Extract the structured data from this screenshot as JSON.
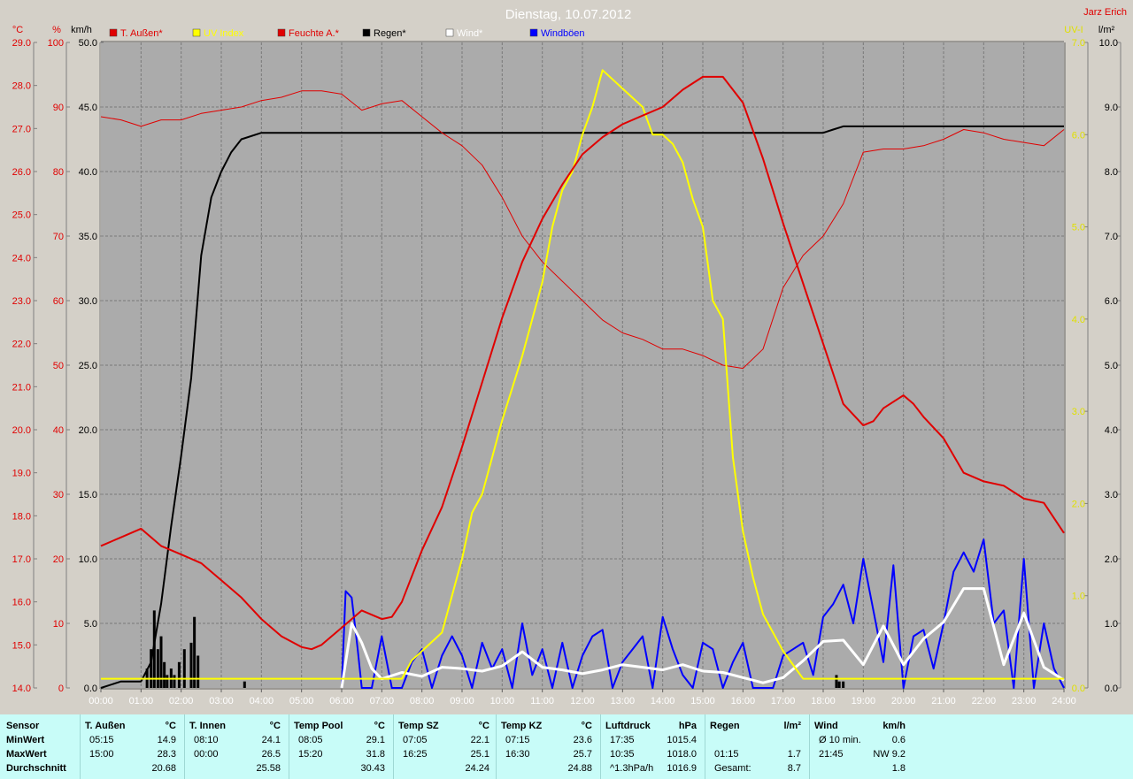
{
  "header": {
    "title": "Dienstag, 10.07.2012",
    "author": "Jarz Erich"
  },
  "legend": [
    {
      "label": "T. Außen*",
      "color": "#e00000"
    },
    {
      "label": "UV Index",
      "color": "#ffff00"
    },
    {
      "label": "Feuchte A.*",
      "color": "#e00000"
    },
    {
      "label": "Regen*",
      "color": "#000000"
    },
    {
      "label": "Wind*",
      "color": "#ffffff"
    },
    {
      "label": "Windböen",
      "color": "#0000ff"
    }
  ],
  "axis_units": {
    "temp": "°C",
    "humidity": "%",
    "wind": "km/h",
    "uv": "UV-I",
    "rain": "l/m²"
  },
  "chart_data": {
    "type": "line",
    "x_ticks": [
      "00:00",
      "01:00",
      "02:00",
      "03:00",
      "04:00",
      "05:00",
      "06:00",
      "07:00",
      "08:00",
      "09:00",
      "10:00",
      "11:00",
      "12:00",
      "13:00",
      "14:00",
      "15:00",
      "16:00",
      "17:00",
      "18:00",
      "19:00",
      "20:00",
      "21:00",
      "22:00",
      "23:00",
      "24:00"
    ],
    "axes": {
      "temp": {
        "range": [
          14,
          29
        ],
        "ticks": [
          "14.0",
          "15.0",
          "16.0",
          "17.0",
          "18.0",
          "19.0",
          "20.0",
          "21.0",
          "22.0",
          "23.0",
          "24.0",
          "25.0",
          "26.0",
          "27.0",
          "28.0",
          "29.0"
        ]
      },
      "humidity": {
        "range": [
          0,
          100
        ],
        "ticks": [
          "0",
          "10",
          "20",
          "30",
          "40",
          "50",
          "60",
          "70",
          "80",
          "90",
          "100"
        ]
      },
      "wind": {
        "range": [
          0,
          50
        ],
        "ticks": [
          "0.0",
          "5.0",
          "10.0",
          "15.0",
          "20.0",
          "25.0",
          "30.0",
          "35.0",
          "40.0",
          "45.0",
          "50.0"
        ]
      },
      "uv": {
        "range": [
          0,
          7
        ],
        "ticks": [
          "0.0",
          "1.0",
          "2.0",
          "3.0",
          "4.0",
          "5.0",
          "6.0",
          "7.0"
        ]
      },
      "rain": {
        "range": [
          0,
          10
        ],
        "ticks": [
          "0.0",
          "1.0",
          "2.0",
          "3.0",
          "4.0",
          "5.0",
          "6.0",
          "7.0",
          "8.0",
          "9.0",
          "10.0"
        ]
      }
    },
    "series": [
      {
        "name": "T. Außen*",
        "axis": "temp",
        "color": "#e00000",
        "width": 2,
        "x": [
          0,
          0.5,
          1.0,
          1.5,
          2.0,
          2.5,
          3.0,
          3.5,
          4.0,
          4.5,
          5.0,
          5.25,
          5.5,
          6.0,
          6.5,
          7.0,
          7.25,
          7.5,
          8.0,
          8.5,
          9.0,
          9.5,
          10.0,
          10.5,
          11.0,
          11.5,
          12.0,
          12.5,
          13.0,
          13.5,
          14.0,
          14.5,
          15.0,
          15.5,
          16.0,
          16.5,
          17.0,
          17.5,
          18.0,
          18.5,
          19.0,
          19.25,
          19.5,
          20.0,
          20.25,
          20.5,
          21.0,
          21.5,
          22.0,
          22.5,
          23.0,
          23.5,
          24.0
        ],
        "y": [
          17.3,
          17.5,
          17.7,
          17.3,
          17.1,
          16.9,
          16.5,
          16.1,
          15.6,
          15.2,
          14.95,
          14.9,
          15.0,
          15.4,
          15.8,
          15.6,
          15.65,
          16.0,
          17.2,
          18.2,
          19.6,
          21.1,
          22.6,
          23.9,
          24.9,
          25.7,
          26.4,
          26.8,
          27.1,
          27.3,
          27.5,
          27.9,
          28.2,
          28.2,
          27.6,
          26.3,
          24.8,
          23.4,
          22.0,
          20.6,
          20.1,
          20.2,
          20.5,
          20.8,
          20.6,
          20.3,
          19.8,
          19.0,
          18.8,
          18.7,
          18.4,
          18.3,
          17.6
        ]
      },
      {
        "name": "Feuchte A.*",
        "axis": "humidity",
        "color": "#e00000",
        "width": 1,
        "x": [
          0,
          0.5,
          1.0,
          1.5,
          2.0,
          2.5,
          3.0,
          3.5,
          4.0,
          4.5,
          5.0,
          5.5,
          6.0,
          6.5,
          7.0,
          7.5,
          8.0,
          8.5,
          9.0,
          9.5,
          10.0,
          10.5,
          11.0,
          11.5,
          12.0,
          12.5,
          13.0,
          13.5,
          14.0,
          14.5,
          15.0,
          15.5,
          16.0,
          16.5,
          17.0,
          17.5,
          18.0,
          18.5,
          19.0,
          19.5,
          20.0,
          20.5,
          21.0,
          21.5,
          22.0,
          22.5,
          23.0,
          23.5,
          24.0
        ],
        "y": [
          88.5,
          88,
          87,
          88,
          88,
          89,
          89.5,
          90,
          91,
          91.5,
          92.5,
          92.5,
          92,
          89.5,
          90.5,
          91,
          88.5,
          86,
          84,
          81,
          76,
          70,
          66,
          63,
          60,
          57,
          55,
          54,
          52.5,
          52.5,
          51.5,
          50,
          49.5,
          52.5,
          62,
          67,
          70,
          75,
          83,
          83.5,
          83.5,
          84,
          85,
          86.5,
          86,
          85,
          84.5,
          84,
          86.5
        ]
      },
      {
        "name": "Regen*",
        "axis": "rain",
        "color": "#000000",
        "width": 2,
        "x": [
          0,
          0.5,
          1.0,
          1.25,
          1.5,
          1.75,
          2.0,
          2.25,
          2.5,
          2.75,
          3.0,
          3.25,
          3.5,
          4.0,
          4.5,
          5.0,
          6.0,
          10.0,
          18.0,
          18.25,
          18.5,
          19.0,
          20.0,
          24.0
        ],
        "y": [
          0,
          0.1,
          0.1,
          0.4,
          1.3,
          2.5,
          3.6,
          4.8,
          6.7,
          7.6,
          8.0,
          8.3,
          8.5,
          8.6,
          8.6,
          8.6,
          8.6,
          8.6,
          8.6,
          8.65,
          8.7,
          8.7,
          8.7,
          8.7
        ]
      },
      {
        "name": "UV Index",
        "axis": "uv",
        "color": "#ffff00",
        "width": 2,
        "x": [
          0,
          6.0,
          7.5,
          7.75,
          8.0,
          8.5,
          9.0,
          9.25,
          9.5,
          10.0,
          10.5,
          11.0,
          11.25,
          11.5,
          11.75,
          12.0,
          12.25,
          12.5,
          12.75,
          13.0,
          13.25,
          13.5,
          13.75,
          14.0,
          14.25,
          14.5,
          14.75,
          15.0,
          15.25,
          15.5,
          15.75,
          16.0,
          16.25,
          16.5,
          17.0,
          17.5,
          18.0,
          20.0,
          24.0
        ],
        "y": [
          0.1,
          0.1,
          0.1,
          0.3,
          0.4,
          0.6,
          1.4,
          1.9,
          2.1,
          2.9,
          3.6,
          4.4,
          5.0,
          5.4,
          5.6,
          6.0,
          6.3,
          6.7,
          6.6,
          6.5,
          6.4,
          6.3,
          6.0,
          6.0,
          5.9,
          5.7,
          5.3,
          5.0,
          4.2,
          4.0,
          2.5,
          1.7,
          1.2,
          0.8,
          0.4,
          0.1,
          0.1,
          0.1,
          0.1
        ]
      },
      {
        "name": "Wind*",
        "axis": "wind",
        "color": "#ffffff",
        "width": 3,
        "x": [
          6.0,
          6.25,
          6.5,
          6.75,
          7.0,
          7.5,
          8.0,
          8.5,
          9.0,
          9.5,
          10.0,
          10.5,
          11.0,
          11.5,
          12.0,
          12.5,
          13.0,
          13.5,
          14.0,
          14.5,
          15.0,
          15.5,
          16.0,
          16.5,
          17.0,
          17.5,
          18.0,
          18.5,
          19.0,
          19.5,
          20.0,
          20.5,
          21.0,
          21.5,
          22.0,
          22.5,
          23.0,
          23.5,
          24.0
        ],
        "y": [
          0,
          5.0,
          3.5,
          1.5,
          0.7,
          1.2,
          0.9,
          1.6,
          1.5,
          1.3,
          1.7,
          2.8,
          1.6,
          1.4,
          1.1,
          1.4,
          1.8,
          1.6,
          1.4,
          1.8,
          1.3,
          1.2,
          0.8,
          0.4,
          0.8,
          2.1,
          3.6,
          3.7,
          1.8,
          4.8,
          1.8,
          3.8,
          5.1,
          7.7,
          7.7,
          1.8,
          5.8,
          1.6,
          0.6
        ]
      },
      {
        "name": "Windböen",
        "axis": "wind",
        "color": "#0000ff",
        "width": 2,
        "x": [
          6.0,
          6.1,
          6.25,
          6.4,
          6.5,
          6.75,
          7.0,
          7.25,
          7.5,
          7.75,
          8.0,
          8.25,
          8.5,
          8.75,
          9.0,
          9.25,
          9.5,
          9.75,
          10.0,
          10.25,
          10.5,
          10.75,
          11.0,
          11.25,
          11.5,
          11.75,
          12.0,
          12.25,
          12.5,
          12.75,
          13.0,
          13.25,
          13.5,
          13.75,
          14.0,
          14.25,
          14.5,
          14.75,
          15.0,
          15.25,
          15.5,
          15.75,
          16.0,
          16.25,
          16.5,
          16.75,
          17.0,
          17.25,
          17.5,
          17.75,
          18.0,
          18.25,
          18.5,
          18.75,
          19.0,
          19.25,
          19.5,
          19.75,
          20.0,
          20.25,
          20.5,
          20.75,
          21.0,
          21.25,
          21.5,
          21.75,
          22.0,
          22.25,
          22.5,
          22.75,
          23.0,
          23.25,
          23.5,
          23.75,
          24.0
        ],
        "y": [
          0,
          7.5,
          7.0,
          3.0,
          0,
          0,
          4.0,
          0,
          0,
          2.0,
          3.0,
          0,
          2.5,
          4.0,
          2.5,
          0,
          3.5,
          1.5,
          3.0,
          0,
          5.0,
          1.0,
          3.0,
          0,
          3.5,
          0,
          2.5,
          4.0,
          4.5,
          0,
          2.0,
          3.0,
          4.0,
          0,
          5.5,
          3.0,
          1.0,
          0,
          3.5,
          3.0,
          0,
          2.0,
          3.5,
          0,
          0,
          0,
          2.5,
          3.0,
          3.5,
          1.0,
          5.5,
          6.5,
          8.0,
          5.0,
          10.0,
          6.0,
          2.0,
          9.5,
          0,
          4.0,
          4.5,
          1.5,
          5.0,
          9.0,
          10.5,
          9.0,
          11.5,
          5.0,
          6.0,
          0,
          10.0,
          0,
          5.0,
          1.5,
          0
        ]
      },
      {
        "name": "Regen (Menge)",
        "axis": "rain",
        "color": "#000000",
        "type": "bars",
        "x": [
          1.15,
          1.25,
          1.33,
          1.42,
          1.5,
          1.58,
          1.65,
          1.75,
          1.83,
          1.95,
          2.08,
          2.25,
          2.33,
          2.42,
          3.58,
          18.33,
          18.4,
          18.5
        ],
        "y": [
          0.3,
          0.6,
          1.2,
          0.6,
          0.8,
          0.4,
          0.2,
          0.3,
          0.2,
          0.4,
          0.6,
          0.7,
          1.1,
          0.5,
          0.1,
          0.2,
          0.1,
          0.1
        ]
      }
    ]
  },
  "stats": {
    "row_labels": [
      "Sensor",
      "MinWert",
      "MaxWert",
      "Durchschnitt"
    ],
    "blocks": [
      {
        "title": "T. Außen",
        "unit": "°C",
        "min_time": "05:15",
        "min_val": "14.9",
        "max_time": "15:00",
        "max_val": "28.3",
        "avg_left": "",
        "avg": "20.68"
      },
      {
        "title": "T. Innen",
        "unit": "°C",
        "min_time": "08:10",
        "min_val": "24.1",
        "max_time": "00:00",
        "max_val": "26.5",
        "avg_left": "",
        "avg": "25.58"
      },
      {
        "title": "Temp Pool",
        "unit": "°C",
        "min_time": "08:05",
        "min_val": "29.1",
        "max_time": "15:20",
        "max_val": "31.8",
        "avg_left": "",
        "avg": "30.43"
      },
      {
        "title": "Temp SZ",
        "unit": "°C",
        "min_time": "07:05",
        "min_val": "22.1",
        "max_time": "16:25",
        "max_val": "25.1",
        "avg_left": "",
        "avg": "24.24"
      },
      {
        "title": "Temp KZ",
        "unit": "°C",
        "min_time": "07:15",
        "min_val": "23.6",
        "max_time": "16:30",
        "max_val": "25.7",
        "avg_left": "",
        "avg": "24.88"
      },
      {
        "title": "Luftdruck",
        "unit": "hPa",
        "min_time": "17:35",
        "min_val": "1015.4",
        "max_time": "10:35",
        "max_val": "1018.0",
        "avg_left": "^1.3hPa/h",
        "avg": "1016.9"
      },
      {
        "title": "Regen",
        "unit": "l/m²",
        "min_time": "",
        "min_val": "",
        "max_time": "01:15",
        "max_val": "1.7",
        "avg_left": "Gesamt:",
        "avg": "8.7"
      },
      {
        "title": "Wind",
        "unit": "km/h",
        "min_time": "Ø 10 min.",
        "min_val": "0.6",
        "max_time": "21:45",
        "max_val": "NW 9.2",
        "avg_left": "",
        "avg": "1.8"
      }
    ]
  }
}
